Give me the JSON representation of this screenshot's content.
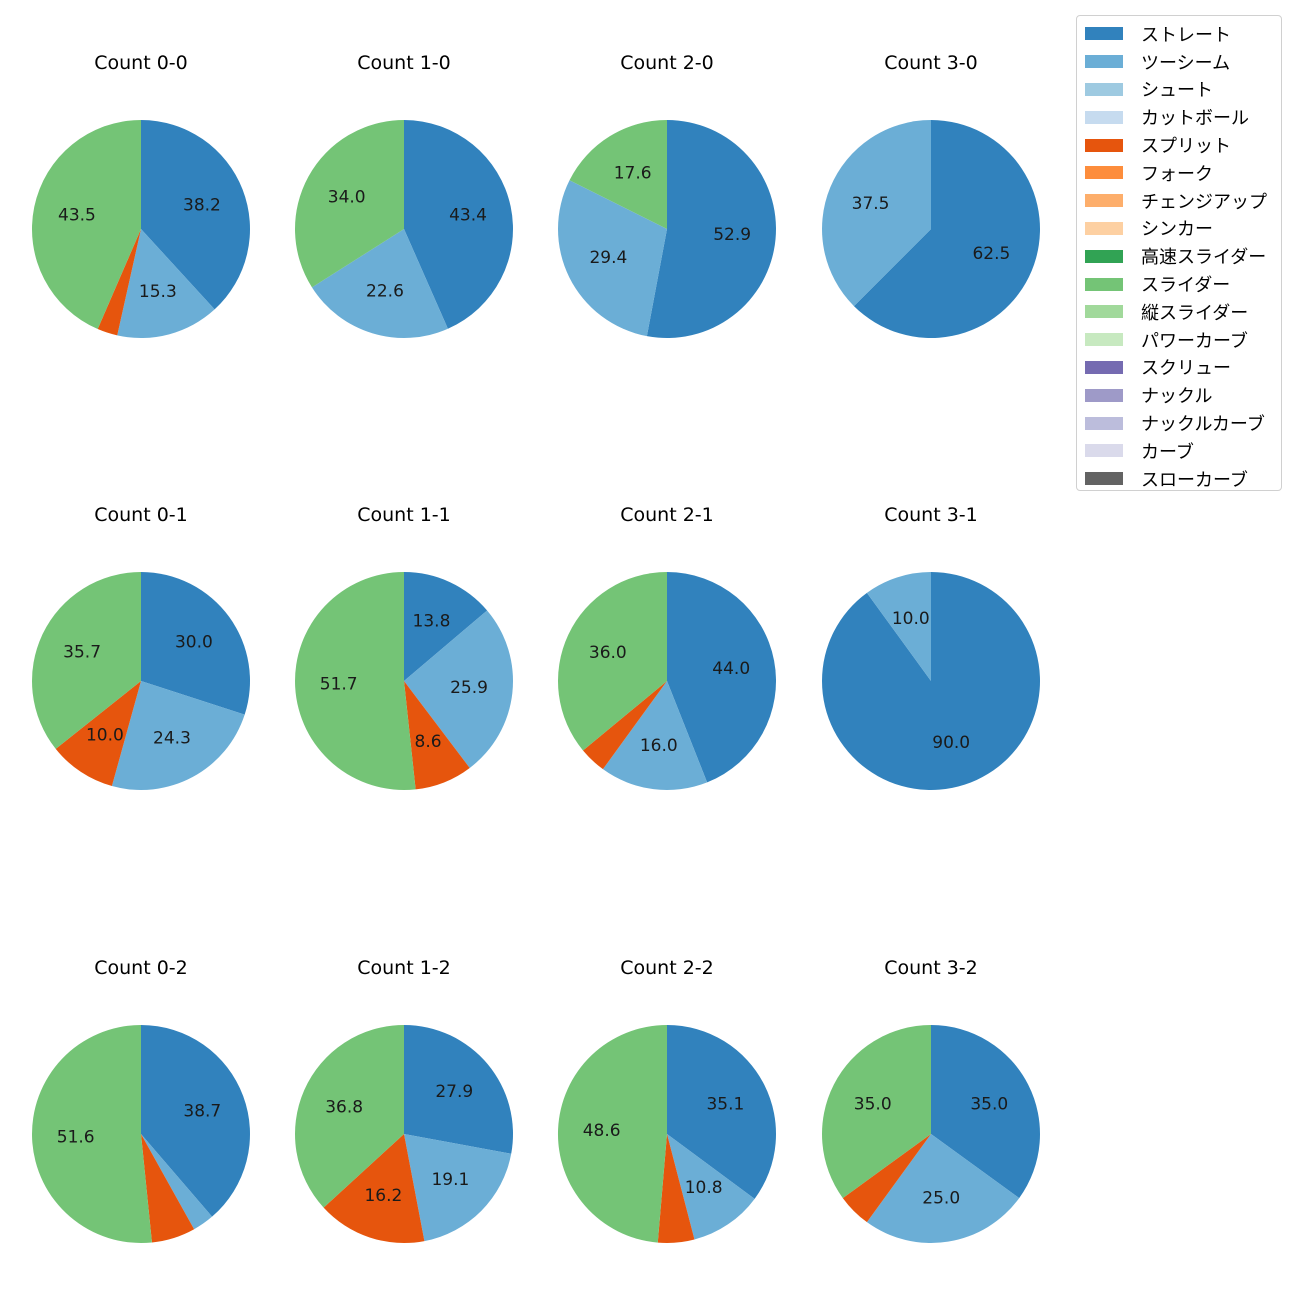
{
  "chart_data": {
    "type": "pie",
    "subplot_title_prefix": "Count",
    "legend": {
      "position": "top-right",
      "entries": [
        {
          "name": "ストレート",
          "color": "#3182bd"
        },
        {
          "name": "ツーシーム",
          "color": "#6baed6"
        },
        {
          "name": "シュート",
          "color": "#9ecae1"
        },
        {
          "name": "カットボール",
          "color": "#c6dbef"
        },
        {
          "name": "スプリット",
          "color": "#e6550d"
        },
        {
          "name": "フォーク",
          "color": "#fd8d3c"
        },
        {
          "name": "チェンジアップ",
          "color": "#fdae6b"
        },
        {
          "name": "シンカー",
          "color": "#fdd0a2"
        },
        {
          "name": "高速スライダー",
          "color": "#31a354"
        },
        {
          "name": "スライダー",
          "color": "#74c476"
        },
        {
          "name": "縦スライダー",
          "color": "#a1d99b"
        },
        {
          "name": "パワーカーブ",
          "color": "#c7e9c0"
        },
        {
          "name": "スクリュー",
          "color": "#756bb1"
        },
        {
          "name": "ナックル",
          "color": "#9e9ac8"
        },
        {
          "name": "ナックルカーブ",
          "color": "#bcbddc"
        },
        {
          "name": "カーブ",
          "color": "#dadaeb"
        },
        {
          "name": "スローカーブ",
          "color": "#636363"
        }
      ]
    },
    "pies": [
      {
        "title": "Count 0-0",
        "slices": [
          {
            "pitch": "ストレート",
            "value": 38.2,
            "label": "38.2"
          },
          {
            "pitch": "ツーシーム",
            "value": 15.3,
            "label": "15.3"
          },
          {
            "pitch": "スプリット",
            "value": 3.0,
            "label": ""
          },
          {
            "pitch": "スライダー",
            "value": 43.5,
            "label": "43.5"
          }
        ]
      },
      {
        "title": "Count 1-0",
        "slices": [
          {
            "pitch": "ストレート",
            "value": 43.4,
            "label": "43.4"
          },
          {
            "pitch": "ツーシーム",
            "value": 22.6,
            "label": "22.6"
          },
          {
            "pitch": "スライダー",
            "value": 34.0,
            "label": "34.0"
          }
        ]
      },
      {
        "title": "Count 2-0",
        "slices": [
          {
            "pitch": "ストレート",
            "value": 52.9,
            "label": "52.9"
          },
          {
            "pitch": "ツーシーム",
            "value": 29.4,
            "label": "29.4"
          },
          {
            "pitch": "スライダー",
            "value": 17.6,
            "label": "17.6"
          }
        ]
      },
      {
        "title": "Count 3-0",
        "slices": [
          {
            "pitch": "ストレート",
            "value": 62.5,
            "label": "62.5"
          },
          {
            "pitch": "ツーシーム",
            "value": 37.5,
            "label": "37.5"
          }
        ]
      },
      {
        "title": "Count 0-1",
        "slices": [
          {
            "pitch": "ストレート",
            "value": 30.0,
            "label": "30.0"
          },
          {
            "pitch": "ツーシーム",
            "value": 24.3,
            "label": "24.3"
          },
          {
            "pitch": "スプリット",
            "value": 10.0,
            "label": "10.0"
          },
          {
            "pitch": "スライダー",
            "value": 35.7,
            "label": "35.7"
          }
        ]
      },
      {
        "title": "Count 1-1",
        "slices": [
          {
            "pitch": "ストレート",
            "value": 13.8,
            "label": "13.8"
          },
          {
            "pitch": "ツーシーム",
            "value": 25.9,
            "label": "25.9"
          },
          {
            "pitch": "スプリット",
            "value": 8.6,
            "label": "8.6"
          },
          {
            "pitch": "スライダー",
            "value": 51.7,
            "label": "51.7"
          }
        ]
      },
      {
        "title": "Count 2-1",
        "slices": [
          {
            "pitch": "ストレート",
            "value": 44.0,
            "label": "44.0"
          },
          {
            "pitch": "ツーシーム",
            "value": 16.0,
            "label": "16.0"
          },
          {
            "pitch": "スプリット",
            "value": 4.0,
            "label": ""
          },
          {
            "pitch": "スライダー",
            "value": 36.0,
            "label": "36.0"
          }
        ]
      },
      {
        "title": "Count 3-1",
        "slices": [
          {
            "pitch": "ストレート",
            "value": 90.0,
            "label": "90.0"
          },
          {
            "pitch": "ツーシーム",
            "value": 10.0,
            "label": "10.0"
          }
        ]
      },
      {
        "title": "Count 0-2",
        "slices": [
          {
            "pitch": "ストレート",
            "value": 38.7,
            "label": "38.7"
          },
          {
            "pitch": "ツーシーム",
            "value": 3.2,
            "label": ""
          },
          {
            "pitch": "スプリット",
            "value": 6.5,
            "label": ""
          },
          {
            "pitch": "スライダー",
            "value": 51.6,
            "label": "51.6"
          }
        ]
      },
      {
        "title": "Count 1-2",
        "slices": [
          {
            "pitch": "ストレート",
            "value": 27.9,
            "label": "27.9"
          },
          {
            "pitch": "ツーシーム",
            "value": 19.1,
            "label": "19.1"
          },
          {
            "pitch": "スプリット",
            "value": 16.2,
            "label": "16.2"
          },
          {
            "pitch": "スライダー",
            "value": 36.8,
            "label": "36.8"
          }
        ]
      },
      {
        "title": "Count 2-2",
        "slices": [
          {
            "pitch": "ストレート",
            "value": 35.1,
            "label": "35.1"
          },
          {
            "pitch": "ツーシーム",
            "value": 10.8,
            "label": "10.8"
          },
          {
            "pitch": "スプリット",
            "value": 5.4,
            "label": ""
          },
          {
            "pitch": "スライダー",
            "value": 48.6,
            "label": "48.6"
          }
        ]
      },
      {
        "title": "Count 3-2",
        "slices": [
          {
            "pitch": "ストレート",
            "value": 35.0,
            "label": "35.0"
          },
          {
            "pitch": "ツーシーム",
            "value": 25.0,
            "label": "25.0"
          },
          {
            "pitch": "スプリット",
            "value": 5.0,
            "label": ""
          },
          {
            "pitch": "スライダー",
            "value": 35.0,
            "label": "35.0"
          }
        ]
      }
    ]
  }
}
